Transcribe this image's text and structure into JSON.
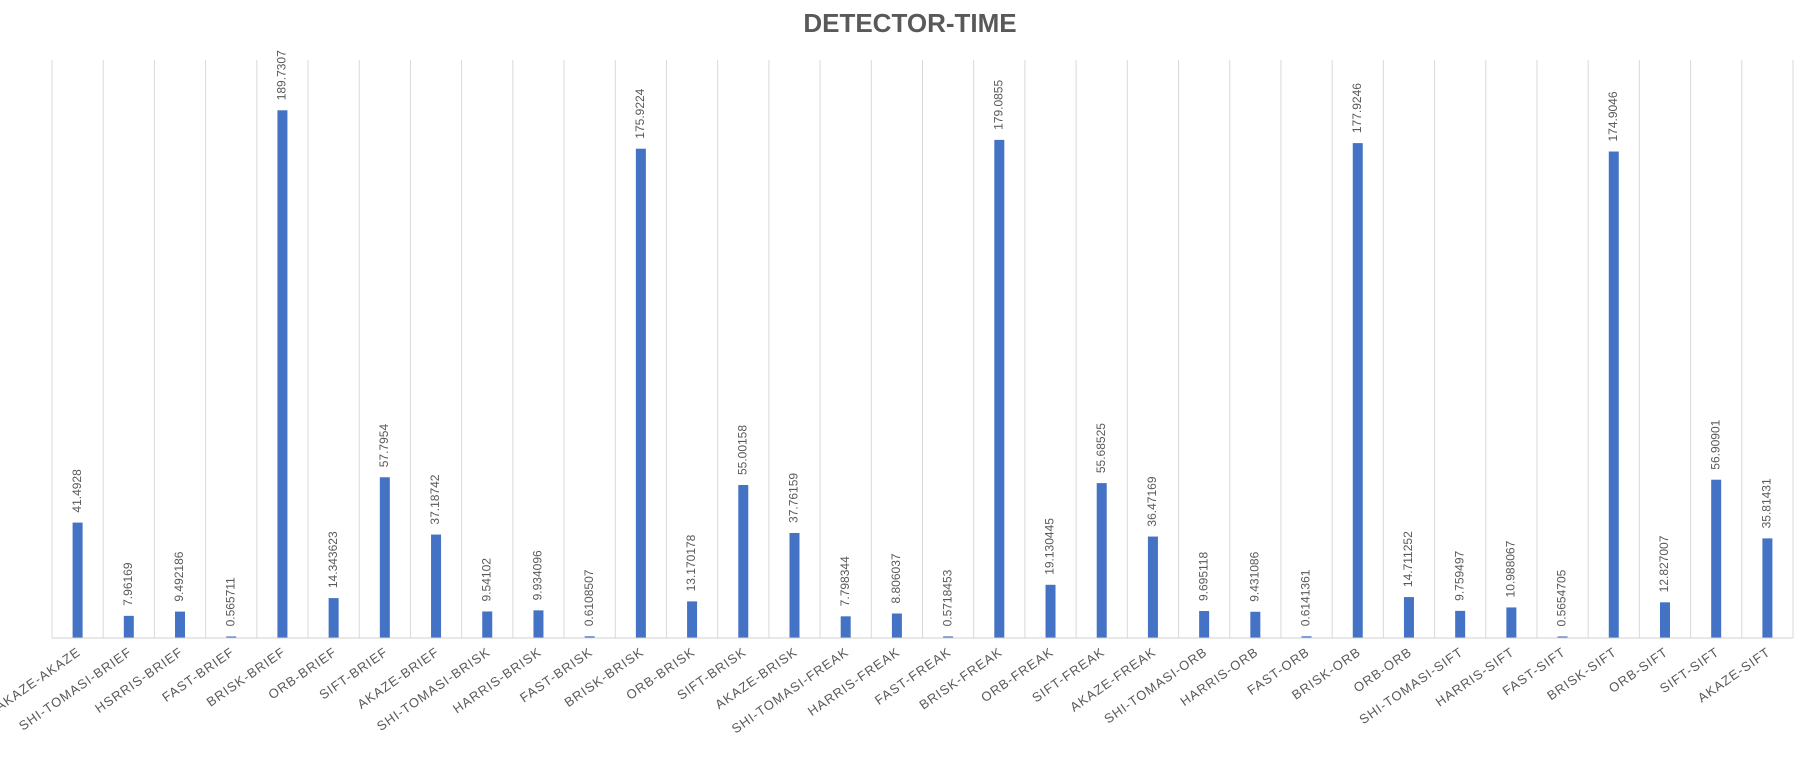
{
  "chart_data": {
    "type": "bar",
    "title": "DETECTOR-TIME",
    "xlabel": "",
    "ylabel": "",
    "ylim": [
      0,
      215
    ],
    "grid": "vertical",
    "legend": "none",
    "bar_color": "#4472C4",
    "categories": [
      "AKAZE-AKAZE",
      "SHI-TOMASI-BRIEF",
      "HSRRIS-BRIEF",
      "FAST-BRIEF",
      "BRISK-BRIEF",
      "ORB-BRIEF",
      "SIFT-BRIEF",
      "AKAZE-BRIEF",
      "SHI-TOMASI-BRISK",
      "HARRIS-BRISK",
      "FAST-BRISK",
      "BRISK-BRISK",
      "ORB-BRISK",
      "SIFT-BRISK",
      "AKAZE-BRISK",
      "SHI-TOMASI-FREAK",
      "HARRIS-FREAK",
      "FAST-FREAK",
      "BRISK-FREAK",
      "ORB-FREAK",
      "SIFT-FREAK",
      "AKAZE-FREAK",
      "SHI-TOMASI-ORB",
      "HARRIS-ORB",
      "FAST-ORB",
      "BRISK-ORB",
      "ORB-ORB",
      "SHI-TOMASI-SIFT",
      "HARRIS-SIFT",
      "FAST-SIFT",
      "BRISK-SIFT",
      "ORB-SIFT",
      "SIFT-SIFT",
      "AKAZE-SIFT"
    ],
    "values": [
      41.4928,
      7.96169,
      9.492186,
      0.565711,
      189.7307,
      14.343623,
      57.7954,
      37.18742,
      9.54102,
      9.934096,
      0.6108507,
      175.9224,
      13.170178,
      55.00158,
      37.76159,
      7.798344,
      8.806037,
      0.5718453,
      179.0855,
      19.130445,
      55.68525,
      36.47169,
      9.695118,
      9.431086,
      0.6141361,
      177.9246,
      14.711252,
      9.759497,
      10.988067,
      0.5654705,
      174.9046,
      12.827007,
      56.90901,
      35.81431
    ],
    "data_labels": [
      "41.4928",
      "7.96169",
      "9.492186",
      "0.565711",
      "189.7307",
      "14.343623",
      "57.7954",
      "37.18742",
      "9.54102",
      "9.934096",
      "0.6108507",
      "175.9224",
      "13.170178",
      "55.00158",
      "37.76159",
      "7.798344",
      "8.806037",
      "0.5718453",
      "179.0855",
      "19.130445",
      "55.68525",
      "36.47169",
      "9.695118",
      "9.431086",
      "0.6141361",
      "177.9246",
      "14.711252",
      "9.759497",
      "10.988067",
      "0.5654705",
      "174.9046",
      "12.827007",
      "56.90901",
      "35.81431"
    ]
  }
}
